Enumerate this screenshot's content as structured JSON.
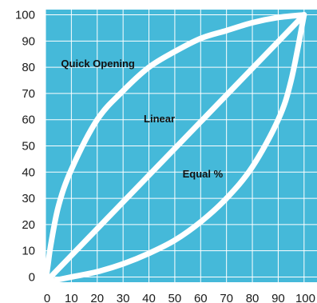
{
  "chart_data": {
    "type": "line",
    "title": "",
    "xlabel": "",
    "ylabel": "",
    "xlim": [
      0,
      105
    ],
    "ylim": [
      -2,
      102
    ],
    "grid": true,
    "legend": "none",
    "colors": {
      "plot_background": "#45b9d9",
      "grid": "#ffffff",
      "curve": "#ffffff"
    },
    "x_ticks": [
      0,
      10,
      20,
      30,
      40,
      50,
      60,
      70,
      80,
      90,
      100
    ],
    "x_tick_labels": [
      "0",
      "10",
      "20",
      "30",
      "40",
      "50",
      "60",
      "70",
      "80",
      "90",
      "100"
    ],
    "y_ticks": [
      0,
      10,
      20,
      30,
      40,
      50,
      60,
      70,
      80,
      90,
      100
    ],
    "y_tick_labels": [
      "0",
      "10",
      "20",
      "30",
      "40",
      "50",
      "60",
      "70",
      "80",
      "90",
      "100"
    ],
    "series": [
      {
        "name": "Quick Opening",
        "x": [
          0,
          1,
          2,
          5,
          10,
          20,
          30,
          40,
          50,
          60,
          70,
          80,
          90,
          100
        ],
        "y": [
          -2,
          5,
          12,
          27,
          41,
          60,
          71,
          80,
          86,
          91,
          94,
          97,
          99,
          100
        ]
      },
      {
        "name": "Linear",
        "x": [
          0,
          100
        ],
        "y": [
          -2,
          100
        ]
      },
      {
        "name": "Equal %",
        "x": [
          0,
          10,
          20,
          30,
          40,
          50,
          60,
          70,
          80,
          90,
          95,
          100
        ],
        "y": [
          -2,
          0,
          2,
          5,
          9,
          14,
          21,
          30,
          42,
          60,
          75,
          100
        ]
      }
    ],
    "annotations": [
      {
        "text": "Quick Opening",
        "x": 6,
        "y": 80
      },
      {
        "text": "Linear",
        "x": 38,
        "y": 59
      },
      {
        "text": "Equal %",
        "x": 53,
        "y": 38
      }
    ]
  }
}
